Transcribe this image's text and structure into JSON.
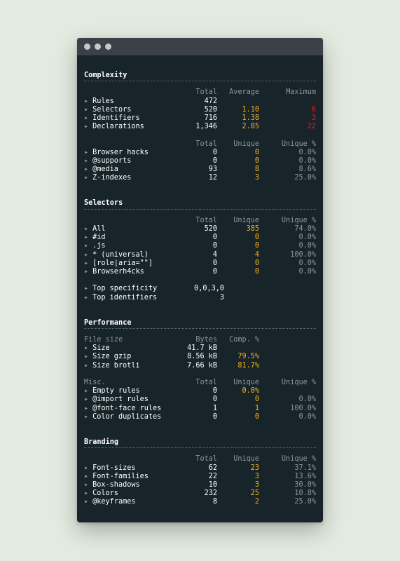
{
  "window": {
    "dots": [
      "",
      "",
      ""
    ]
  },
  "sections": {
    "complexity": {
      "title": "Complexity",
      "header1": {
        "c1": "Total",
        "c2": "Average",
        "c3": "Maximum"
      },
      "rows1": [
        {
          "label": "Rules",
          "total": "472",
          "avg": "",
          "max": ""
        },
        {
          "label": "Selectors",
          "total": "520",
          "avg": "1.10",
          "max": "6"
        },
        {
          "label": "Identifiers",
          "total": "716",
          "avg": "1.38",
          "max": "3"
        },
        {
          "label": "Declarations",
          "total": "1,346",
          "avg": "2.85",
          "max": "22"
        }
      ],
      "header2": {
        "c1": "Total",
        "c2": "Unique",
        "c3": "Unique %"
      },
      "rows2": [
        {
          "label": "Browser hacks",
          "total": "0",
          "unique": "0",
          "pct": "0.0%"
        },
        {
          "label": "@supports",
          "total": "0",
          "unique": "0",
          "pct": "0.0%"
        },
        {
          "label": "@media",
          "total": "93",
          "unique": "8",
          "pct": "8.6%"
        },
        {
          "label": "Z-indexes",
          "total": "12",
          "unique": "3",
          "pct": "25.0%"
        }
      ]
    },
    "selectors": {
      "title": "Selectors",
      "header": {
        "c1": "Total",
        "c2": "Unique",
        "c3": "Unique %"
      },
      "rows": [
        {
          "label": "All",
          "total": "520",
          "unique": "385",
          "pct": "74.0%"
        },
        {
          "label": "#id",
          "total": "0",
          "unique": "0",
          "pct": "0.0%"
        },
        {
          "label": ".js",
          "total": "0",
          "unique": "0",
          "pct": "0.0%"
        },
        {
          "label": "* (universal)",
          "total": "4",
          "unique": "4",
          "pct": "100.0%"
        },
        {
          "label": "[role|aria=\"\"]",
          "total": "0",
          "unique": "0",
          "pct": "0.0%"
        },
        {
          "label": "Browserh4cks",
          "total": "0",
          "unique": "0",
          "pct": "0.0%"
        }
      ],
      "extra": [
        {
          "label": "Top specificity",
          "value": "0,0,3,0"
        },
        {
          "label": "Top identifiers",
          "value": "3"
        }
      ]
    },
    "performance": {
      "title": "Performance",
      "header1": {
        "c0": "File size",
        "c1": "Bytes",
        "c2": "Comp. %"
      },
      "rows1": [
        {
          "label": "Size",
          "bytes": "41.7 kB",
          "comp": ""
        },
        {
          "label": "Size gzip",
          "bytes": "8.56 kB",
          "comp": "79.5%"
        },
        {
          "label": "Size brotli",
          "bytes": "7.66 kB",
          "comp": "81.7%"
        }
      ],
      "header2": {
        "c0": "Misc.",
        "c1": "Total",
        "c2": "Unique",
        "c3": "Unique %"
      },
      "rows2": [
        {
          "label": "Empty rules",
          "total": "0",
          "unique": "0.0%",
          "pct": ""
        },
        {
          "label": "@import rules",
          "total": "0",
          "unique": "0",
          "pct": "0.0%"
        },
        {
          "label": "@font-face rules",
          "total": "1",
          "unique": "1",
          "pct": "100.0%"
        },
        {
          "label": "Color duplicates",
          "total": "0",
          "unique": "0",
          "pct": "0.0%"
        }
      ]
    },
    "branding": {
      "title": "Branding",
      "header": {
        "c1": "Total",
        "c2": "Unique",
        "c3": "Unique %"
      },
      "rows": [
        {
          "label": "Font-sizes",
          "total": "62",
          "unique": "23",
          "pct": "37.1%"
        },
        {
          "label": "Font-families",
          "total": "22",
          "unique": "3",
          "pct": "13.6%"
        },
        {
          "label": "Box-shadows",
          "total": "10",
          "unique": "3",
          "pct": "30.0%"
        },
        {
          "label": "Colors",
          "total": "232",
          "unique": "25",
          "pct": "10.8%"
        },
        {
          "label": "@keyframes",
          "total": "8",
          "unique": "2",
          "pct": "25.0%"
        }
      ]
    }
  },
  "glyphs": {
    "arrow": "▸"
  },
  "colors": {
    "accent": "#f5b21b",
    "alert": "#e0202a",
    "background": "#17242a",
    "page": "#e3ebe1"
  }
}
